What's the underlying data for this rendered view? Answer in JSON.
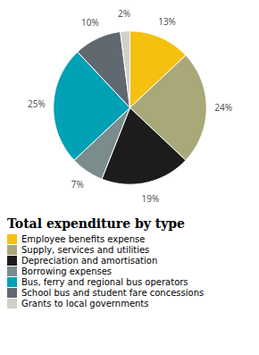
{
  "chart_data": {
    "type": "pie",
    "title": "Total expenditure by type",
    "categories": [
      "Employee benefits expense",
      "Supply, services and utilities",
      "Depreciation and amortisation",
      "Borrowing expenses",
      "Bus, ferry and regional bus operators",
      "School bus and student fare concessions",
      "Grants to local governments"
    ],
    "values": [
      13,
      24,
      19,
      7,
      25,
      10,
      2
    ],
    "value_labels": [
      "13%",
      "24%",
      "19%",
      "7%",
      "25%",
      "10%",
      "2%"
    ],
    "colors": [
      "#F5C010",
      "#A8A878",
      "#1C1C1C",
      "#7A8C8C",
      "#00A0B5",
      "#606870",
      "#D0D0C8"
    ],
    "data_labels": true,
    "legend": "bottom"
  }
}
